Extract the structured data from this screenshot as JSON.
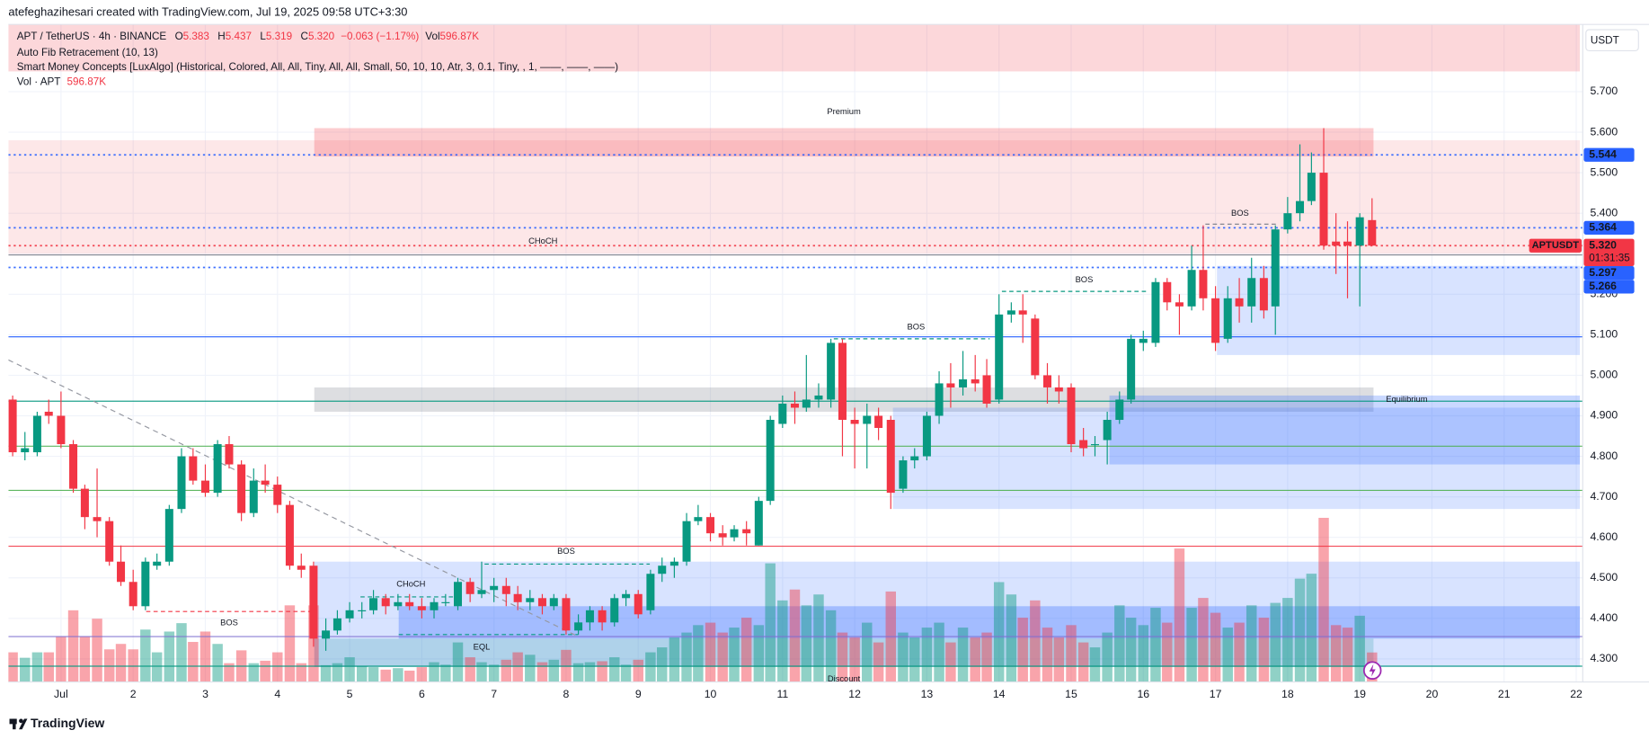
{
  "watermark": "atefeghazihesari created with TradingView.com, Jul 19, 2025 09:58 UTC+3:30",
  "header": {
    "symbol": "APT / TetherUS · 4h · BINANCE",
    "ohlc": [
      {
        "key": "O",
        "value": "5.383"
      },
      {
        "key": "H",
        "value": "5.437"
      },
      {
        "key": "L",
        "value": "5.319"
      },
      {
        "key": "C",
        "value": "5.320"
      }
    ],
    "change": "−0.063 (−1.17%)",
    "vol_key": "Vol",
    "vol_value": "596.87K",
    "indicators": [
      "Auto Fib Retracement (10, 13)",
      "Smart Money Concepts [LuxAlgo] (Historical, Colored, All, All, Tiny, All, All, Small, 50, 10, 10, Atr, 3, 0.1, Tiny, , 1, ——, ——, ——)"
    ],
    "volume_title": "Vol · APT",
    "volume_value": "596.87K"
  },
  "branding": "TradingView",
  "chart_data": {
    "type": "candlestick",
    "currency": "USDT",
    "x": [
      0.33,
      0.5,
      0.67,
      0.83,
      1,
      1.17,
      1.33,
      1.5,
      1.67,
      1.83,
      2,
      2.17,
      2.33,
      2.5,
      2.67,
      2.83,
      3,
      3.17,
      3.33,
      3.5,
      3.67,
      3.83,
      4,
      4.17,
      4.33,
      4.5,
      4.67,
      4.83,
      5,
      5.17,
      5.33,
      5.5,
      5.67,
      5.83,
      6,
      6.17,
      6.33,
      6.5,
      6.67,
      6.83,
      7,
      7.17,
      7.33,
      7.5,
      7.67,
      7.83,
      8,
      8.17,
      8.33,
      8.5,
      8.67,
      8.83,
      9,
      9.17,
      9.33,
      9.5,
      9.67,
      9.83,
      10,
      10.17,
      10.33,
      10.5,
      10.67,
      10.83,
      11,
      11.17,
      11.33,
      11.5,
      11.67,
      11.83,
      12,
      12.17,
      12.33,
      12.5,
      12.67,
      12.83,
      13,
      13.17,
      13.33,
      13.5,
      13.67,
      13.83,
      14,
      14.17,
      14.33,
      14.5,
      14.67,
      14.83,
      15,
      15.17,
      15.33,
      15.5,
      15.67,
      15.83,
      16,
      16.17,
      16.33,
      16.5,
      16.67,
      16.83,
      17,
      17.17,
      17.33,
      17.5,
      17.67,
      17.83,
      18,
      18.17,
      18.33,
      18.5,
      18.67,
      18.83,
      19,
      19.17
    ],
    "open": [
      4.94,
      4.81,
      4.81,
      4.91,
      4.9,
      4.83,
      4.72,
      4.65,
      4.64,
      4.54,
      4.49,
      4.43,
      4.53,
      4.54,
      4.67,
      4.8,
      4.74,
      4.71,
      4.83,
      4.78,
      4.66,
      4.74,
      4.73,
      4.68,
      4.53,
      4.53,
      4.35,
      4.37,
      4.4,
      4.42,
      4.42,
      4.45,
      4.43,
      4.44,
      4.43,
      4.42,
      4.44,
      4.43,
      4.49,
      4.46,
      4.47,
      4.48,
      4.46,
      4.44,
      4.45,
      4.43,
      4.45,
      4.37,
      4.39,
      4.42,
      4.39,
      4.45,
      4.46,
      4.42,
      4.51,
      4.53,
      4.54,
      4.64,
      4.65,
      4.61,
      4.6,
      4.62,
      4.58,
      4.69,
      4.88,
      4.93,
      4.92,
      4.94,
      4.94,
      5.08,
      4.89,
      4.88,
      4.9,
      4.89,
      4.72,
      4.79,
      4.8,
      4.9,
      4.98,
      4.97,
      4.99,
      5.0,
      4.94,
      5.15,
      5.16,
      5.14,
      5.0,
      4.97,
      4.97,
      4.84,
      4.83,
      4.84,
      4.89,
      4.94,
      5.08,
      5.08,
      5.23,
      5.18,
      5.17,
      5.26,
      5.19,
      5.09,
      5.19,
      5.17,
      5.24,
      5.17,
      5.36,
      5.4,
      5.43,
      5.5,
      5.33,
      5.33,
      5.32,
      5.383
    ],
    "high": [
      4.95,
      4.86,
      4.91,
      4.94,
      4.96,
      4.84,
      4.73,
      4.77,
      4.65,
      4.58,
      4.52,
      4.55,
      4.56,
      4.68,
      4.82,
      4.82,
      4.78,
      4.84,
      4.85,
      4.79,
      4.77,
      4.78,
      4.75,
      4.69,
      4.56,
      4.54,
      4.4,
      4.42,
      4.44,
      4.44,
      4.47,
      4.46,
      4.46,
      4.46,
      4.45,
      4.45,
      4.46,
      4.5,
      4.5,
      4.54,
      4.5,
      4.5,
      4.48,
      4.47,
      4.46,
      4.46,
      4.46,
      4.41,
      4.43,
      4.43,
      4.46,
      4.47,
      4.47,
      4.52,
      4.55,
      4.55,
      4.66,
      4.68,
      4.66,
      4.63,
      4.63,
      4.64,
      4.7,
      4.9,
      4.95,
      4.96,
      5.05,
      4.98,
      5.09,
      5.09,
      4.92,
      4.93,
      4.92,
      4.9,
      4.8,
      4.82,
      4.91,
      5.01,
      5.03,
      5.06,
      5.05,
      5.04,
      5.2,
      5.18,
      5.2,
      5.15,
      5.03,
      5.0,
      4.98,
      4.87,
      4.85,
      4.91,
      4.96,
      5.1,
      5.11,
      5.24,
      5.24,
      5.2,
      5.32,
      5.37,
      5.22,
      5.22,
      5.24,
      5.29,
      5.27,
      5.37,
      5.44,
      5.57,
      5.55,
      5.61,
      5.4,
      5.38,
      5.4,
      5.437
    ],
    "low": [
      4.8,
      4.79,
      4.8,
      4.88,
      4.82,
      4.71,
      4.62,
      4.6,
      4.53,
      4.48,
      4.42,
      4.42,
      4.52,
      4.53,
      4.66,
      4.73,
      4.7,
      4.7,
      4.77,
      4.64,
      4.65,
      4.71,
      4.66,
      4.52,
      4.5,
      4.33,
      4.32,
      4.36,
      4.39,
      4.4,
      4.41,
      4.41,
      4.42,
      4.42,
      4.4,
      4.4,
      4.43,
      4.42,
      4.44,
      4.45,
      4.44,
      4.43,
      4.42,
      4.42,
      4.41,
      4.42,
      4.36,
      4.36,
      4.37,
      4.37,
      4.38,
      4.43,
      4.4,
      4.41,
      4.49,
      4.5,
      4.53,
      4.63,
      4.59,
      4.58,
      4.59,
      4.58,
      4.58,
      4.68,
      4.87,
      4.88,
      4.91,
      4.92,
      4.92,
      4.8,
      4.77,
      4.77,
      4.84,
      4.67,
      4.71,
      4.77,
      4.79,
      4.88,
      4.92,
      4.95,
      4.96,
      4.92,
      4.93,
      5.13,
      5.08,
      4.99,
      4.93,
      4.93,
      4.81,
      4.8,
      4.8,
      4.78,
      4.88,
      4.93,
      5.06,
      5.07,
      5.16,
      5.1,
      5.16,
      5.16,
      5.06,
      5.08,
      5.13,
      5.13,
      5.14,
      5.1,
      5.35,
      5.38,
      5.42,
      5.31,
      5.25,
      5.19,
      5.17,
      5.319
    ],
    "close": [
      4.81,
      4.82,
      4.9,
      4.9,
      4.83,
      4.72,
      4.65,
      4.64,
      4.54,
      4.49,
      4.43,
      4.54,
      4.54,
      4.67,
      4.8,
      4.74,
      4.71,
      4.83,
      4.78,
      4.66,
      4.74,
      4.73,
      4.68,
      4.53,
      4.52,
      4.35,
      4.37,
      4.4,
      4.42,
      4.42,
      4.45,
      4.43,
      4.44,
      4.43,
      4.42,
      4.44,
      4.44,
      4.49,
      4.46,
      4.47,
      4.48,
      4.46,
      4.44,
      4.45,
      4.43,
      4.45,
      4.37,
      4.39,
      4.42,
      4.39,
      4.45,
      4.46,
      4.41,
      4.51,
      4.53,
      4.54,
      4.64,
      4.65,
      4.61,
      4.6,
      4.62,
      4.61,
      4.69,
      4.89,
      4.93,
      4.92,
      4.94,
      4.95,
      5.08,
      4.89,
      4.88,
      4.9,
      4.87,
      4.71,
      4.79,
      4.8,
      4.9,
      4.98,
      4.97,
      4.99,
      4.98,
      4.93,
      5.15,
      5.16,
      5.15,
      5.0,
      4.97,
      4.96,
      4.83,
      4.82,
      4.83,
      4.89,
      4.94,
      5.09,
      5.09,
      5.23,
      5.18,
      5.17,
      5.26,
      5.19,
      5.08,
      5.19,
      5.17,
      5.24,
      5.16,
      5.36,
      5.4,
      5.43,
      5.5,
      5.32,
      5.32,
      5.32,
      5.39,
      5.32
    ],
    "volume": [
      600,
      490,
      600,
      600,
      920,
      1450,
      920,
      1280,
      660,
      770,
      660,
      1060,
      600,
      1020,
      1190,
      810,
      1020,
      770,
      380,
      640,
      380,
      430,
      600,
      1550,
      380,
      1550,
      340,
      380,
      500,
      320,
      300,
      250,
      280,
      230,
      300,
      400,
      350,
      800,
      500,
      400,
      350,
      450,
      600,
      550,
      400,
      450,
      650,
      380,
      400,
      420,
      500,
      350,
      450,
      600,
      700,
      900,
      1000,
      1150,
      1200,
      1000,
      1100,
      1300,
      1150,
      2400,
      1650,
      1870,
      1550,
      1770,
      1450,
      1000,
      900,
      1200,
      800,
      1830,
      1000,
      900,
      1100,
      1200,
      800,
      1100,
      900,
      1000,
      2020,
      1770,
      1300,
      1650,
      1100,
      900,
      1150,
      800,
      700,
      1000,
      1550,
      1300,
      1150,
      1500,
      1200,
      2700,
      1500,
      1700,
      1400,
      1100,
      1200,
      1550,
      1300,
      1600,
      1700,
      2090,
      2190,
      3320,
      1150,
      1100,
      1340,
      596.87
    ],
    "volume_lim": [
      0,
      13300
    ],
    "up_color": "#089981",
    "down_color": "#f23645",
    "xlim": [
      0.271,
      22.09
    ],
    "xticks": [
      {
        "value": 1,
        "label": "Jul"
      },
      2,
      3,
      4,
      5,
      6,
      7,
      8,
      9,
      10,
      11,
      12,
      13,
      14,
      15,
      16,
      17,
      18,
      19,
      20,
      21,
      22
    ],
    "ylim": [
      4.243,
      5.866
    ],
    "yticks": [
      {
        "value": 4.3,
        "label": "4.300"
      },
      {
        "value": 4.4,
        "label": "4.400"
      },
      {
        "value": 4.5,
        "label": "4.500"
      },
      {
        "value": 4.6,
        "label": "4.600"
      },
      {
        "value": 4.7,
        "label": "4.700"
      },
      {
        "value": 4.8,
        "label": "4.800"
      },
      {
        "value": 4.9,
        "label": "4.900"
      },
      {
        "value": 5.0,
        "label": "5.000"
      },
      {
        "value": 5.1,
        "label": "5.100"
      },
      {
        "value": 5.2,
        "label": "5.200"
      },
      {
        "value": 5.3,
        "label": "5.300"
      },
      {
        "value": 5.4,
        "label": "5.400"
      },
      {
        "value": 5.5,
        "label": "5.500"
      },
      {
        "value": 5.6,
        "label": "5.600"
      },
      {
        "value": 5.7,
        "label": "5.700"
      }
    ],
    "grid": true,
    "zones": [
      {
        "x0": 0.27,
        "x1": 22.05,
        "y0": 5.75,
        "y1": 5.866,
        "color": "rgba(242,54,69,0.2)"
      },
      {
        "x0": 0.27,
        "x1": 22.05,
        "y0": 5.3,
        "y1": 5.58,
        "color": "rgba(242,54,69,0.12)"
      },
      {
        "x0": 4.51,
        "x1": 19.19,
        "y0": 5.54,
        "y1": 5.61,
        "color": "rgba(242,54,69,0.25)"
      },
      {
        "x0": 4.51,
        "x1": 19.19,
        "y0": 4.91,
        "y1": 4.97,
        "color": "rgba(120,123,134,0.25)"
      },
      {
        "x0": 4.51,
        "x1": 19.19,
        "y0": 4.28,
        "y1": 4.35,
        "color": "rgba(8,153,129,0.2)"
      },
      {
        "x0": 4.51,
        "x1": 22.05,
        "y0": 4.28,
        "y1": 4.54,
        "color": "rgba(41,98,255,0.18)"
      },
      {
        "x0": 5.68,
        "x1": 22.05,
        "y0": 4.35,
        "y1": 4.43,
        "color": "rgba(41,98,255,0.3)"
      },
      {
        "x0": 12.53,
        "x1": 22.05,
        "y0": 4.67,
        "y1": 4.92,
        "color": "rgba(41,98,255,0.18)"
      },
      {
        "x0": 15.53,
        "x1": 22.05,
        "y0": 4.78,
        "y1": 4.95,
        "color": "rgba(41,98,255,0.25)"
      },
      {
        "x0": 17.02,
        "x1": 22.05,
        "y0": 5.05,
        "y1": 5.27,
        "color": "rgba(41,98,255,0.18)"
      }
    ],
    "levels": [
      {
        "price": 5.544,
        "color": "#2962ff",
        "style": "dotted"
      },
      {
        "price": 5.364,
        "color": "#2962ff",
        "style": "dotted"
      },
      {
        "price": 5.32,
        "color": "#f23645",
        "style": "dotted"
      },
      {
        "price": 5.297,
        "color": "#787b86",
        "style": "solid"
      },
      {
        "price": 5.266,
        "color": "#2962ff",
        "style": "dotted"
      },
      {
        "price": 5.095,
        "color": "#2962ff",
        "style": "solid"
      },
      {
        "price": 4.936,
        "color": "#089981",
        "style": "solid"
      },
      {
        "price": 4.825,
        "color": "#4caf50",
        "style": "solid"
      },
      {
        "price": 4.716,
        "color": "#4caf50",
        "style": "solid"
      },
      {
        "price": 4.578,
        "color": "#f23645",
        "style": "solid"
      },
      {
        "price": 4.355,
        "color": "#7e6fd0",
        "style": "solid"
      },
      {
        "price": 4.282,
        "color": "#089981",
        "style": "solid"
      }
    ],
    "lines": [
      {
        "x0": 6.87,
        "x1": 9.16,
        "price": 4.534,
        "color": "#089981"
      },
      {
        "x0": 5.15,
        "x1": 6.52,
        "price": 4.453,
        "color": "#089981"
      },
      {
        "x0": 2.18,
        "x1": 4.51,
        "price": 4.417,
        "color": "#f23645"
      },
      {
        "x0": 5.68,
        "x1": 8.17,
        "price": 4.36,
        "color": "#089981"
      },
      {
        "x0": 11.71,
        "x1": 13.87,
        "price": 5.09,
        "color": "#089981"
      },
      {
        "x0": 14.04,
        "x1": 16.04,
        "price": 5.207,
        "color": "#089981"
      },
      {
        "x0": 16.86,
        "x1": 17.87,
        "price": 5.373,
        "color": "#787b86"
      }
    ],
    "trendline": {
      "x0": 0.27,
      "y0": 5.038,
      "x1": 8.17,
      "y1": 4.355,
      "color": "#9598a1"
    },
    "annotations": [
      {
        "text": "Premium",
        "x": 11.85,
        "y": 5.65,
        "color": "#f23645"
      },
      {
        "text": "Equilibrium",
        "x": 19.65,
        "y": 4.94,
        "color": "#b2b5be"
      },
      {
        "text": "Discount",
        "x": 11.85,
        "y": 4.25,
        "color": "#089981"
      },
      {
        "text": "CHoCH",
        "x": 7.68,
        "y": 5.33,
        "color": "#089981"
      },
      {
        "text": "BOS",
        "x": 8.0,
        "y": 4.565,
        "color": "#089981"
      },
      {
        "text": "CHoCH",
        "x": 5.85,
        "y": 4.484,
        "color": "#089981"
      },
      {
        "text": "BOS",
        "x": 3.33,
        "y": 4.388,
        "color": "#f23645"
      },
      {
        "text": "EQL",
        "x": 6.83,
        "y": 4.328,
        "color": "#089981"
      },
      {
        "text": "BOS",
        "x": 12.85,
        "y": 5.118,
        "color": "#089981"
      },
      {
        "text": "BOS",
        "x": 15.18,
        "y": 5.235,
        "color": "#089981"
      },
      {
        "text": "BOS",
        "x": 17.34,
        "y": 5.399,
        "color": "#787b86"
      }
    ],
    "price_labels": [
      {
        "value": 5.544,
        "label": "5.544",
        "color": "#2962ff"
      },
      {
        "value": 5.364,
        "label": "5.364",
        "color": "#2962ff"
      },
      {
        "value": 5.32,
        "label": "5.320",
        "symbol": "APTUSDT",
        "countdown": "01:31:35",
        "color": "#f23645"
      },
      {
        "value": 5.297,
        "label": "5.297",
        "color": "#2962ff"
      },
      {
        "value": 5.266,
        "label": "5.266",
        "color": "#2962ff"
      }
    ]
  }
}
